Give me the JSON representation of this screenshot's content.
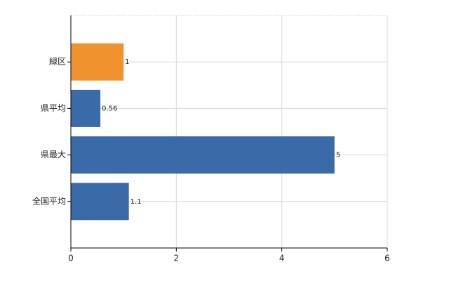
{
  "chart_data": {
    "type": "bar",
    "orientation": "horizontal",
    "categories": [
      "緑区",
      "県平均",
      "県最大",
      "全国平均"
    ],
    "values": [
      1,
      0.56,
      5,
      1.1
    ],
    "colors": [
      "#f0922e",
      "#3a6aa8",
      "#3a6aa8",
      "#3a6aa8"
    ],
    "xlim": [
      0,
      6
    ],
    "xticks": [
      0,
      2,
      4,
      6
    ],
    "grid": true
  }
}
